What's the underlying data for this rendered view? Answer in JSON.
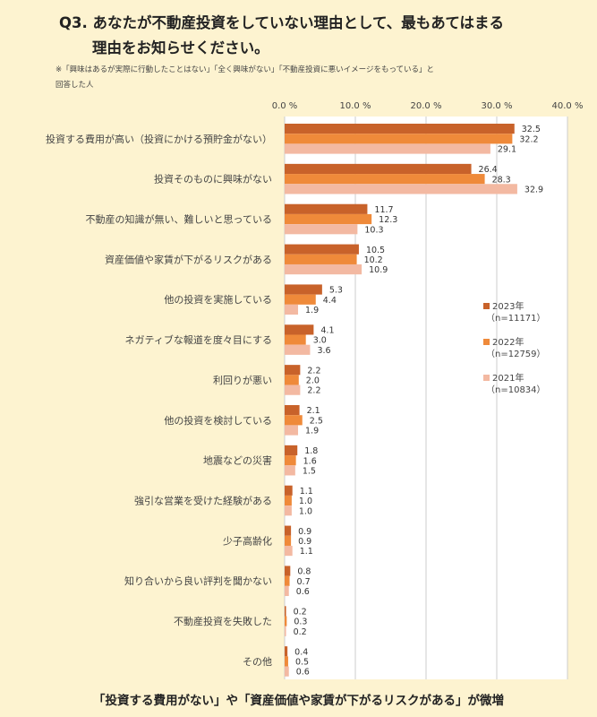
{
  "title_line1": "Q3. あなたが不動産投資をしていない理由として、最もあてはまる",
  "title_line2": "理由をお知らせください。",
  "note_line1": "※「興味はあるが実際に行動したことはない」「全く興味がない」「不動産投資に悪いイメージをもっている」と",
  "note_line2": "回答した人",
  "footer": "「投資する費用がない」や「資産価値や家賃が下がるリスクがある」が微増",
  "colors": {
    "s2023": "#c8622a",
    "s2022": "#ef8a3a",
    "s2021": "#f3b9a2",
    "plot_bg": "#ffffff",
    "grid": "#cccccc"
  },
  "chart_data": {
    "type": "bar",
    "orientation": "horizontal",
    "x_ticks": [
      "0.0 %",
      "10.0 %",
      "20.0 %",
      "30.0 %",
      "40.0 %"
    ],
    "xlim": [
      0,
      40
    ],
    "grid": true,
    "legend_position": "right",
    "categories": [
      "投資する費用が高い（投資にかける預貯金がない）",
      "投資そのものに興味がない",
      "不動産の知識が無い、難しいと思っている",
      "資産価値や家賃が下がるリスクがある",
      "他の投資を実施している",
      "ネガティブな報道を度々目にする",
      "利回りが悪い",
      "他の投資を検討している",
      "地震などの災害",
      "強引な営業を受けた経験がある",
      "少子高齢化",
      "知り合いから良い評判を聞かない",
      "不動産投資を失敗した",
      "その他"
    ],
    "series": [
      {
        "name": "2023年",
        "n": "（n=11171）",
        "color": "#c8622a",
        "values": [
          32.5,
          26.4,
          11.7,
          10.5,
          5.3,
          4.1,
          2.2,
          2.1,
          1.8,
          1.1,
          0.9,
          0.8,
          0.2,
          0.4
        ]
      },
      {
        "name": "2022年",
        "n": "（n=12759）",
        "color": "#ef8a3a",
        "values": [
          32.2,
          28.3,
          12.3,
          10.2,
          4.4,
          3.0,
          2.0,
          2.5,
          1.6,
          1.0,
          0.9,
          0.7,
          0.3,
          0.5
        ]
      },
      {
        "name": "2021年",
        "n": "（n=10834）",
        "color": "#f3b9a2",
        "values": [
          29.1,
          32.9,
          10.3,
          10.9,
          1.9,
          3.6,
          2.2,
          1.9,
          1.5,
          1.0,
          1.1,
          0.6,
          0.2,
          0.6
        ]
      }
    ]
  }
}
